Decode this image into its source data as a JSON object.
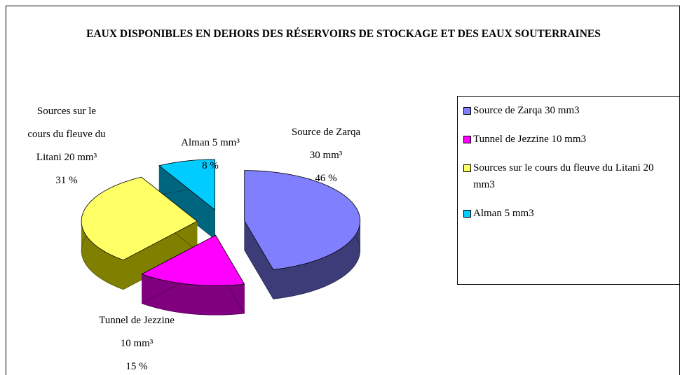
{
  "chart_data": {
    "type": "pie",
    "title": "EAUX DISPONIBLES EN DEHORS DES RÉSERVOIRS DE STOCKAGE ET DES EAUX SOUTERRAINES",
    "categories": [
      "Source de Zarqa 30 mm3",
      "Tunnel de Jezzine 10 mm3",
      "Sources sur le cours du fleuve du Litani 20 mm3",
      "Alman 5 mm3"
    ],
    "values": [
      46,
      15,
      31,
      8
    ],
    "value_labels": [
      "46 %",
      "15 %",
      "31 %",
      "8 %"
    ],
    "label_lines": [
      [
        "Source de Zarqa",
        "30 mm³"
      ],
      [
        "Tunnel de Jezzine",
        "10 mm³"
      ],
      [
        "Sources sur le",
        "cours du fleuve du",
        "Litani 20 mm³"
      ],
      [
        "Alman 5 mm³"
      ]
    ],
    "colors": [
      "#8080ff",
      "#ff00ff",
      "#ffff66",
      "#00ccff"
    ],
    "side_colors": [
      "#3c3c78",
      "#800080",
      "#808000",
      "#006680"
    ],
    "legend": "right"
  }
}
